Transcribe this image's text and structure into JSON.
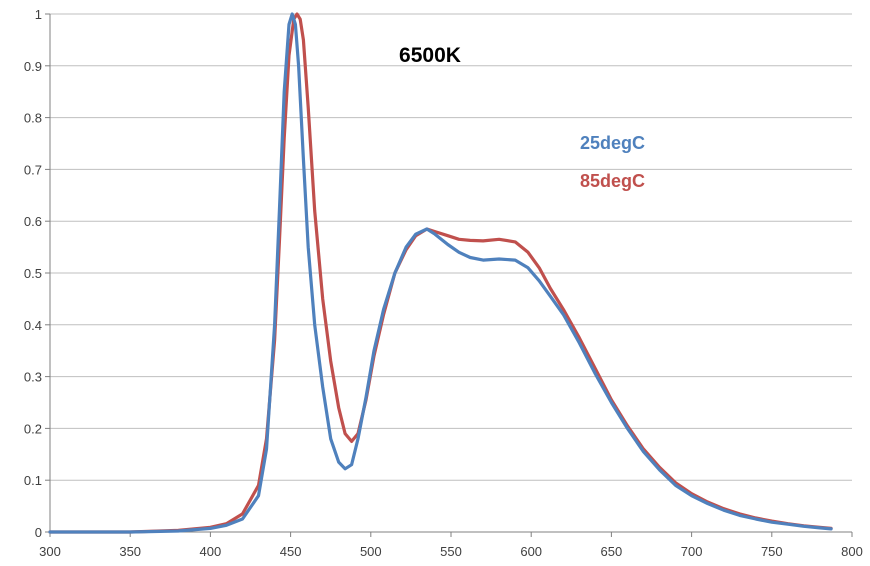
{
  "chart_data": {
    "type": "line",
    "title": "6500K",
    "xlabel": "",
    "ylabel": "",
    "xlim": [
      300,
      800
    ],
    "ylim": [
      0,
      1
    ],
    "x_ticks": [
      300,
      350,
      400,
      450,
      500,
      550,
      600,
      650,
      700,
      750,
      800
    ],
    "y_ticks": [
      0,
      0.1,
      0.2,
      0.3,
      0.4,
      0.5,
      0.6,
      0.7,
      0.8,
      0.9,
      1
    ],
    "x_tick_labels": [
      "300",
      "350",
      "400",
      "450",
      "500",
      "550",
      "600",
      "650",
      "700",
      "750",
      "800"
    ],
    "y_tick_labels": [
      "0",
      "0.1",
      "0.2",
      "0.3",
      "0.4",
      "0.5",
      "0.6",
      "0.7",
      "0.8",
      "0.9",
      "1"
    ],
    "grid": "horizontal",
    "legend_position": "right",
    "series": [
      {
        "name": "25degC",
        "color": "#4F81BD",
        "x": [
          300,
          350,
          380,
          400,
          410,
          420,
          430,
          435,
          440,
          443,
          446,
          449,
          451,
          453,
          455,
          458,
          461,
          465,
          470,
          475,
          480,
          484,
          488,
          492,
          497,
          502,
          508,
          515,
          522,
          528,
          535,
          540,
          548,
          555,
          562,
          570,
          580,
          590,
          598,
          605,
          612,
          620,
          630,
          640,
          650,
          660,
          670,
          680,
          690,
          700,
          710,
          720,
          730,
          740,
          750,
          760,
          770,
          780,
          787
        ],
        "y": [
          0.0,
          0.0,
          0.002,
          0.007,
          0.013,
          0.025,
          0.07,
          0.16,
          0.4,
          0.62,
          0.85,
          0.98,
          1.0,
          0.98,
          0.9,
          0.72,
          0.55,
          0.4,
          0.28,
          0.18,
          0.135,
          0.122,
          0.13,
          0.18,
          0.26,
          0.35,
          0.43,
          0.5,
          0.55,
          0.575,
          0.585,
          0.575,
          0.555,
          0.54,
          0.53,
          0.525,
          0.527,
          0.525,
          0.51,
          0.485,
          0.455,
          0.42,
          0.365,
          0.305,
          0.25,
          0.2,
          0.155,
          0.12,
          0.09,
          0.07,
          0.055,
          0.042,
          0.032,
          0.025,
          0.019,
          0.015,
          0.011,
          0.008,
          0.006
        ]
      },
      {
        "name": "85degC",
        "color": "#C0504D",
        "x": [
          300,
          350,
          380,
          400,
          410,
          420,
          430,
          435,
          440,
          443,
          446,
          449,
          452,
          454,
          456,
          458,
          461,
          465,
          470,
          475,
          480,
          484,
          488,
          492,
          497,
          502,
          508,
          515,
          522,
          528,
          535,
          540,
          548,
          555,
          562,
          570,
          580,
          590,
          598,
          605,
          612,
          620,
          630,
          640,
          650,
          660,
          670,
          680,
          690,
          700,
          710,
          720,
          730,
          740,
          750,
          760,
          770,
          780,
          787
        ],
        "y": [
          0.0,
          0.0,
          0.003,
          0.009,
          0.016,
          0.035,
          0.09,
          0.18,
          0.37,
          0.56,
          0.76,
          0.92,
          0.99,
          1.0,
          0.99,
          0.95,
          0.82,
          0.62,
          0.45,
          0.33,
          0.24,
          0.19,
          0.175,
          0.19,
          0.255,
          0.34,
          0.42,
          0.5,
          0.545,
          0.572,
          0.585,
          0.58,
          0.572,
          0.565,
          0.563,
          0.562,
          0.565,
          0.56,
          0.54,
          0.51,
          0.47,
          0.43,
          0.375,
          0.315,
          0.255,
          0.205,
          0.16,
          0.125,
          0.095,
          0.074,
          0.058,
          0.045,
          0.035,
          0.027,
          0.021,
          0.016,
          0.012,
          0.009,
          0.007
        ]
      }
    ]
  }
}
